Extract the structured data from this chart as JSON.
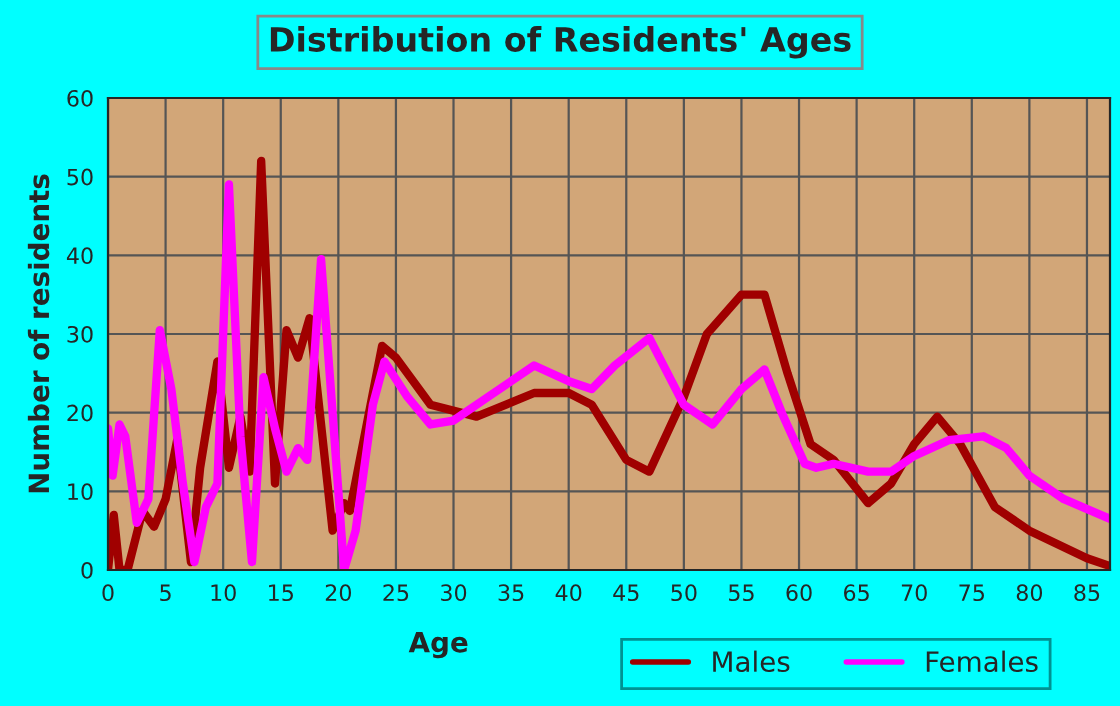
{
  "chart_data": {
    "type": "line",
    "title": "Distribution of Residents' Ages",
    "xlabel": "Age",
    "ylabel": "Number of residents",
    "xlim": [
      0,
      87
    ],
    "xticks": [
      0,
      5,
      10,
      15,
      20,
      25,
      30,
      35,
      40,
      45,
      50,
      55,
      60,
      65,
      70,
      75,
      80,
      85
    ],
    "ylim": [
      0,
      60
    ],
    "yticks": [
      0,
      10,
      20,
      30,
      40,
      50,
      60
    ],
    "grid": true,
    "legend": "bottom right",
    "line_style": "solid",
    "series": [
      {
        "name": "Males",
        "color": "#a00000",
        "x": [
          0,
          0.5,
          1,
          1.7,
          3,
          4,
          5,
          6,
          7.2,
          8,
          9.5,
          10.5,
          11.5,
          12.3,
          13.3,
          14.5,
          15.5,
          16.5,
          17.5,
          19.5,
          20.5,
          21,
          23.8,
          25,
          28,
          32,
          37,
          40,
          42,
          45,
          47,
          50,
          52,
          55,
          57,
          59,
          61,
          63,
          66,
          68,
          70,
          72,
          74,
          77,
          80,
          85,
          87
        ],
        "values": [
          0,
          7,
          0,
          0,
          7.5,
          5.5,
          9,
          16.5,
          1,
          13,
          26.5,
          13,
          19.5,
          12.5,
          52,
          11,
          30.5,
          27,
          32,
          5,
          8.5,
          7.5,
          28.5,
          27,
          21,
          19.5,
          22.5,
          22.5,
          21,
          14,
          12.5,
          22,
          30,
          35,
          35,
          25,
          16,
          14,
          8.5,
          11,
          16,
          19.5,
          16,
          8,
          5,
          1.5,
          0.5
        ]
      },
      {
        "name": "Females",
        "color": "#ff00ff",
        "x": [
          0,
          0.4,
          1,
          1.5,
          2.5,
          3.5,
          4.5,
          5.5,
          6.5,
          7.5,
          8.5,
          9.5,
          10.5,
          11.5,
          12.5,
          13.5,
          14.5,
          15.5,
          16.5,
          17.3,
          18.5,
          19.5,
          20.5,
          21.5,
          23,
          24,
          26,
          28,
          30,
          33,
          37,
          40,
          42,
          44,
          47,
          50,
          52.5,
          55,
          57,
          58.5,
          60.5,
          61.5,
          63,
          66,
          68,
          70,
          73,
          76,
          78,
          80,
          83,
          87
        ],
        "values": [
          18,
          12,
          18.5,
          17,
          6,
          9,
          30.5,
          23,
          11,
          1,
          8,
          11,
          49,
          17,
          1,
          24.5,
          18,
          12.5,
          15.5,
          14,
          39.5,
          20,
          0,
          5,
          21,
          26.5,
          22,
          18.5,
          19,
          22,
          26,
          24,
          23,
          26,
          29.5,
          21,
          18.5,
          23,
          25.5,
          20,
          13.5,
          13,
          13.5,
          12.5,
          12.5,
          14.5,
          16.5,
          17,
          15.5,
          12,
          9,
          6.5
        ]
      }
    ]
  }
}
